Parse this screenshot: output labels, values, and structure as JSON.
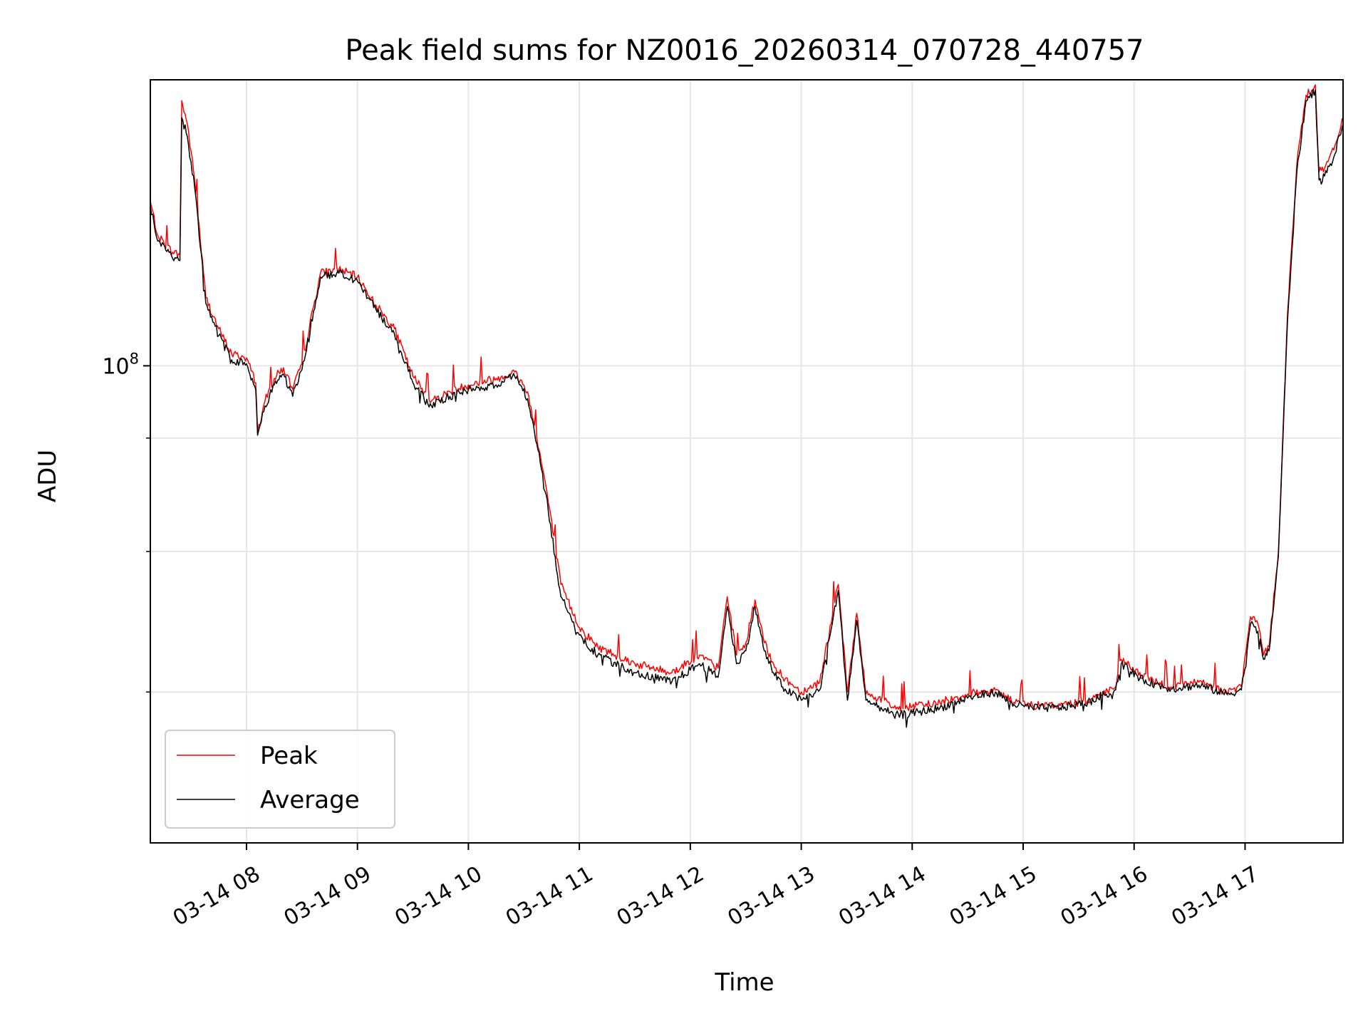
{
  "chart_data": {
    "type": "line",
    "title": "Peak field sums for NZ0016_20260314_070728_440757",
    "xlabel": "Time",
    "ylabel": "ADU",
    "y_scale": "log",
    "grid": true,
    "legend_position": "lower-left",
    "xlim": [
      "03-14 07:08",
      "03-14 17:53"
    ],
    "ylim": [
      9500000,
      410000000
    ],
    "x_ticks": [
      "03-14 08",
      "03-14 09",
      "03-14 10",
      "03-14 11",
      "03-14 12",
      "03-14 13",
      "03-14 14",
      "03-14 15",
      "03-14 16",
      "03-14 17"
    ],
    "y_ticks": [
      {
        "value": 100000000,
        "label": "10^8"
      }
    ],
    "y_minor_ticks": [
      70000000,
      40000000,
      20000000
    ],
    "series": [
      {
        "name": "Peak",
        "color": "#ff0000",
        "x": [
          "03-14 07:08",
          "03-14 07:12",
          "03-14 07:20",
          "03-14 07:24",
          "03-14 07:25",
          "03-14 07:28",
          "03-14 07:32",
          "03-14 07:38",
          "03-14 07:45",
          "03-14 07:52",
          "03-14 08:00",
          "03-14 08:05",
          "03-14 08:06",
          "03-14 08:10",
          "03-14 08:15",
          "03-14 08:20",
          "03-14 08:25",
          "03-14 08:30",
          "03-14 08:40",
          "03-14 08:50",
          "03-14 09:00",
          "03-14 09:10",
          "03-14 09:20",
          "03-14 09:30",
          "03-14 09:40",
          "03-14 09:50",
          "03-14 10:00",
          "03-14 10:15",
          "03-14 10:25",
          "03-14 10:32",
          "03-14 10:37",
          "03-14 10:42",
          "03-14 10:50",
          "03-14 11:00",
          "03-14 11:10",
          "03-14 11:30",
          "03-14 11:50",
          "03-14 12:05",
          "03-14 12:15",
          "03-14 12:20",
          "03-14 12:25",
          "03-14 12:30",
          "03-14 12:35",
          "03-14 12:40",
          "03-14 12:45",
          "03-14 12:50",
          "03-14 12:55",
          "03-14 13:00",
          "03-14 13:10",
          "03-14 13:20",
          "03-14 13:25",
          "03-14 13:30",
          "03-14 13:35",
          "03-14 13:40",
          "03-14 13:45",
          "03-14 13:50",
          "03-14 14:00",
          "03-14 14:15",
          "03-14 14:30",
          "03-14 14:45",
          "03-14 14:55",
          "03-14 15:05",
          "03-14 15:20",
          "03-14 15:35",
          "03-14 15:50",
          "03-14 15:53",
          "03-14 16:05",
          "03-14 16:20",
          "03-14 16:35",
          "03-14 16:50",
          "03-14 16:58",
          "03-14 17:03",
          "03-14 17:07",
          "03-14 17:10",
          "03-14 17:13",
          "03-14 17:18",
          "03-14 17:23",
          "03-14 17:28",
          "03-14 17:33",
          "03-14 17:38",
          "03-14 17:40",
          "03-14 17:43",
          "03-14 17:48",
          "03-14 17:53"
        ],
        "values": [
          225000000,
          190000000,
          175000000,
          173000000,
          370000000,
          330000000,
          250000000,
          140000000,
          120000000,
          106000000,
          104000000,
          92000000,
          72000000,
          84000000,
          94000000,
          99000000,
          89000000,
          101000000,
          158000000,
          161000000,
          155000000,
          135000000,
          120000000,
          95000000,
          84000000,
          88000000,
          91000000,
          94000000,
          97000000,
          88000000,
          70000000,
          55000000,
          34000000,
          27500000,
          25000000,
          23000000,
          22000000,
          24000000,
          22500000,
          32000000,
          24000000,
          25500000,
          31500000,
          25500000,
          23000000,
          21500000,
          20800000,
          20000000,
          21000000,
          34000000,
          20000000,
          29500000,
          19800000,
          19500000,
          19200000,
          18500000,
          18600000,
          19000000,
          19800000,
          20200000,
          19000000,
          18700000,
          18700000,
          19200000,
          20500000,
          23500000,
          21500000,
          20500000,
          21000000,
          20000000,
          20500000,
          29000000,
          28000000,
          24000000,
          25000000,
          40000000,
          130000000,
          270000000,
          380000000,
          400000000,
          260000000,
          265000000,
          290000000,
          340000000
        ]
      },
      {
        "name": "Average",
        "color": "#000000",
        "x": [
          "03-14 07:08",
          "03-14 07:12",
          "03-14 07:20",
          "03-14 07:24",
          "03-14 07:25",
          "03-14 07:28",
          "03-14 07:32",
          "03-14 07:38",
          "03-14 07:45",
          "03-14 07:52",
          "03-14 08:00",
          "03-14 08:05",
          "03-14 08:06",
          "03-14 08:10",
          "03-14 08:15",
          "03-14 08:20",
          "03-14 08:25",
          "03-14 08:30",
          "03-14 08:40",
          "03-14 08:50",
          "03-14 09:00",
          "03-14 09:10",
          "03-14 09:20",
          "03-14 09:30",
          "03-14 09:40",
          "03-14 09:50",
          "03-14 10:00",
          "03-14 10:15",
          "03-14 10:25",
          "03-14 10:32",
          "03-14 10:37",
          "03-14 10:42",
          "03-14 10:50",
          "03-14 11:00",
          "03-14 11:10",
          "03-14 11:30",
          "03-14 11:50",
          "03-14 12:05",
          "03-14 12:15",
          "03-14 12:20",
          "03-14 12:25",
          "03-14 12:30",
          "03-14 12:35",
          "03-14 12:40",
          "03-14 12:45",
          "03-14 12:50",
          "03-14 12:55",
          "03-14 13:00",
          "03-14 13:10",
          "03-14 13:20",
          "03-14 13:25",
          "03-14 13:30",
          "03-14 13:35",
          "03-14 13:40",
          "03-14 13:45",
          "03-14 13:50",
          "03-14 14:00",
          "03-14 14:15",
          "03-14 14:30",
          "03-14 14:45",
          "03-14 14:55",
          "03-14 15:05",
          "03-14 15:20",
          "03-14 15:35",
          "03-14 15:50",
          "03-14 15:53",
          "03-14 16:05",
          "03-14 16:20",
          "03-14 16:35",
          "03-14 16:50",
          "03-14 16:58",
          "03-14 17:03",
          "03-14 17:07",
          "03-14 17:10",
          "03-14 17:13",
          "03-14 17:18",
          "03-14 17:23",
          "03-14 17:28",
          "03-14 17:33",
          "03-14 17:38",
          "03-14 17:40",
          "03-14 17:43",
          "03-14 17:48",
          "03-14 17:53"
        ],
        "values": [
          220000000,
          185000000,
          170000000,
          168000000,
          340000000,
          310000000,
          240000000,
          136000000,
          116000000,
          103000000,
          101000000,
          89000000,
          71000000,
          82000000,
          91000000,
          96000000,
          86000000,
          98000000,
          155000000,
          158000000,
          152000000,
          132000000,
          117000000,
          92000000,
          82000000,
          86000000,
          89000000,
          91000000,
          95000000,
          85000000,
          68000000,
          53000000,
          32000000,
          26500000,
          24000000,
          22000000,
          21000000,
          23000000,
          21500000,
          30500000,
          23000000,
          24500000,
          30500000,
          24500000,
          22000000,
          20500000,
          19800000,
          19200000,
          20200000,
          33000000,
          19200000,
          28500000,
          19200000,
          18700000,
          18400000,
          17800000,
          18000000,
          18500000,
          19400000,
          20000000,
          18800000,
          18500000,
          18500000,
          19000000,
          20200000,
          23000000,
          21200000,
          20300000,
          20700000,
          19800000,
          20200000,
          28000000,
          27000000,
          23500000,
          24500000,
          39000000,
          125000000,
          260000000,
          370000000,
          390000000,
          250000000,
          255000000,
          280000000,
          330000000
        ]
      }
    ]
  }
}
